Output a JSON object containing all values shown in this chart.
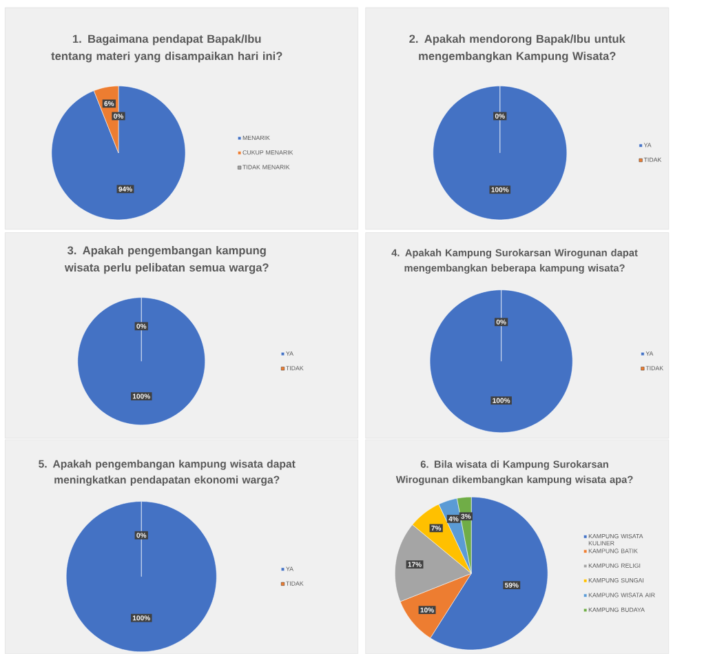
{
  "chart_data": [
    {
      "type": "pie",
      "title": "1. Bagaimana pendapat Bapak/Ibu tentang materi yang disampaikan hari ini?",
      "categories": [
        "MENARIK",
        "CUKUP MENARIK",
        "TIDAK MENARIK"
      ],
      "values": [
        94,
        6,
        0
      ],
      "value_labels": [
        "94%",
        "6%",
        "0%"
      ],
      "colors": [
        "#4472c4",
        "#ed7d31",
        "#a5a5a5"
      ],
      "legend": "right"
    },
    {
      "type": "pie",
      "title": "2. Apakah mendorong Bapak/Ibu untuk mengembangkan Kampung Wisata?",
      "categories": [
        "YA",
        "TIDAK"
      ],
      "values": [
        100,
        0
      ],
      "value_labels": [
        "100%",
        "0%"
      ],
      "colors": [
        "#4472c4",
        "#ed7d31"
      ],
      "legend": "right"
    },
    {
      "type": "pie",
      "title": "3. Apakah pengembangan kampung wisata perlu pelibatan semua warga?",
      "categories": [
        "YA",
        "TIDAK"
      ],
      "values": [
        100,
        0
      ],
      "value_labels": [
        "100%",
        "0%"
      ],
      "colors": [
        "#4472c4",
        "#ed7d31"
      ],
      "legend": "right"
    },
    {
      "type": "pie",
      "title": "4. Apakah Kampung Surokarsan Wirogunan dapat mengembangkan beberapa kampung wisata?",
      "categories": [
        "YA",
        "TIDAK"
      ],
      "values": [
        100,
        0
      ],
      "value_labels": [
        "100%",
        "0%"
      ],
      "colors": [
        "#4472c4",
        "#ed7d31"
      ],
      "legend": "right"
    },
    {
      "type": "pie",
      "title": "5. Apakah pengembangan kampung wisata dapat meningkatkan pendapatan ekonomi warga?",
      "categories": [
        "YA",
        "TIDAK"
      ],
      "values": [
        100,
        0
      ],
      "value_labels": [
        "100%",
        "0%"
      ],
      "colors": [
        "#4472c4",
        "#ed7d31"
      ],
      "legend": "right"
    },
    {
      "type": "pie",
      "title": "6. Bila wisata di Kampung Surokarsan Wirogunan dikembangkan kampung wisata apa?",
      "categories": [
        "KAMPUNG WISATA KULINER",
        "KAMPUNG BATIK",
        "KAMPUNG RELIGI",
        "KAMPUNG SUNGAI",
        "KAMPUNG WISATA AIR",
        "KAMPUNG BUDAYA"
      ],
      "values": [
        59,
        10,
        17,
        7,
        4,
        3
      ],
      "value_labels": [
        "59%",
        "10%",
        "17%",
        "7%",
        "4%",
        "3%"
      ],
      "colors": [
        "#4472c4",
        "#ed7d31",
        "#a5a5a5",
        "#ffc000",
        "#5b9bd5",
        "#70ad47"
      ],
      "legend": "right"
    }
  ]
}
